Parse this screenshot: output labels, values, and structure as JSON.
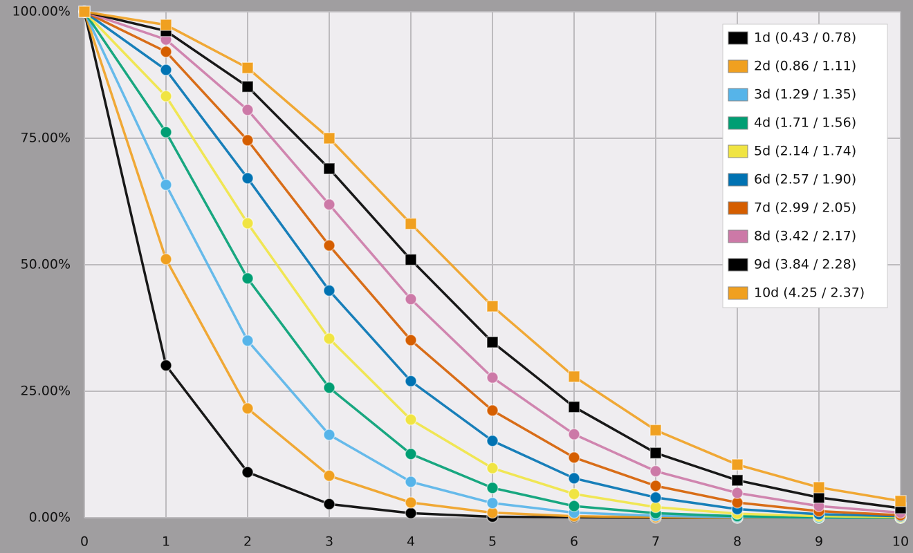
{
  "chart_data": {
    "type": "line",
    "x": [
      0,
      1,
      2,
      3,
      4,
      5,
      6,
      7,
      8,
      9,
      10
    ],
    "xlim": [
      0,
      10
    ],
    "xticks": [
      0,
      1,
      2,
      3,
      4,
      5,
      6,
      7,
      8,
      9,
      10
    ],
    "ylim": [
      0,
      100
    ],
    "yticks": [
      {
        "value": 0,
        "label": "0.00%"
      },
      {
        "value": 25,
        "label": "25.00%"
      },
      {
        "value": 50,
        "label": "50.00%"
      },
      {
        "value": 75,
        "label": "75.00%"
      },
      {
        "value": 100,
        "label": "100.00%"
      }
    ],
    "grid": true,
    "legend": "upper right",
    "series": [
      {
        "name": "1d (0.43 / 0.78)",
        "color": "#000000",
        "marker": "circle",
        "values": [
          100,
          30.1,
          9.0,
          2.7,
          0.9,
          0.2,
          0.1,
          0,
          0,
          0,
          0
        ]
      },
      {
        "name": "2d (0.86 / 1.11)",
        "color": "#f0a020",
        "marker": "circle",
        "values": [
          100,
          51.1,
          21.6,
          8.3,
          3.0,
          1.0,
          0.3,
          0.1,
          0,
          0,
          0
        ]
      },
      {
        "name": "3d (1.29 / 1.35)",
        "color": "#56b4e9",
        "marker": "circle",
        "values": [
          100,
          65.8,
          35.0,
          16.4,
          7.1,
          2.9,
          1.0,
          0.4,
          0.1,
          0,
          0
        ]
      },
      {
        "name": "4d (1.71 / 1.56)",
        "color": "#009e73",
        "marker": "circle",
        "values": [
          100,
          76.2,
          47.3,
          25.7,
          12.6,
          5.9,
          2.3,
          0.9,
          0.3,
          0.1,
          0
        ]
      },
      {
        "name": "5d (2.14 / 1.74)",
        "color": "#f0e442",
        "marker": "circle",
        "values": [
          100,
          83.3,
          58.2,
          35.4,
          19.4,
          9.8,
          4.7,
          2.1,
          0.8,
          0.3,
          0.1
        ]
      },
      {
        "name": "6d (2.57 / 1.90)",
        "color": "#0072b2",
        "marker": "circle",
        "values": [
          100,
          88.5,
          67.1,
          44.9,
          27.0,
          15.2,
          7.8,
          4.0,
          1.7,
          0.7,
          0.3
        ]
      },
      {
        "name": "7d (2.99 / 2.05)",
        "color": "#d55e00",
        "marker": "circle",
        "values": [
          100,
          92.1,
          74.6,
          53.8,
          35.1,
          21.2,
          11.9,
          6.3,
          3.0,
          1.3,
          0.5
        ]
      },
      {
        "name": "8d (3.42 / 2.17)",
        "color": "#cc79a7",
        "marker": "circle",
        "values": [
          100,
          94.5,
          80.6,
          61.9,
          43.2,
          27.7,
          16.5,
          9.2,
          4.9,
          2.3,
          1.0
        ]
      },
      {
        "name": "9d (3.84 / 2.28)",
        "color": "#000000",
        "marker": "square",
        "values": [
          100,
          96.2,
          85.2,
          69.0,
          51.0,
          34.7,
          21.9,
          12.8,
          7.4,
          4.0,
          1.9
        ]
      },
      {
        "name": "10d (4.25 / 2.37)",
        "color": "#f0a020",
        "marker": "square",
        "values": [
          100,
          97.4,
          88.9,
          75.0,
          58.1,
          41.8,
          27.9,
          17.3,
          10.5,
          6.0,
          3.3
        ]
      }
    ]
  }
}
